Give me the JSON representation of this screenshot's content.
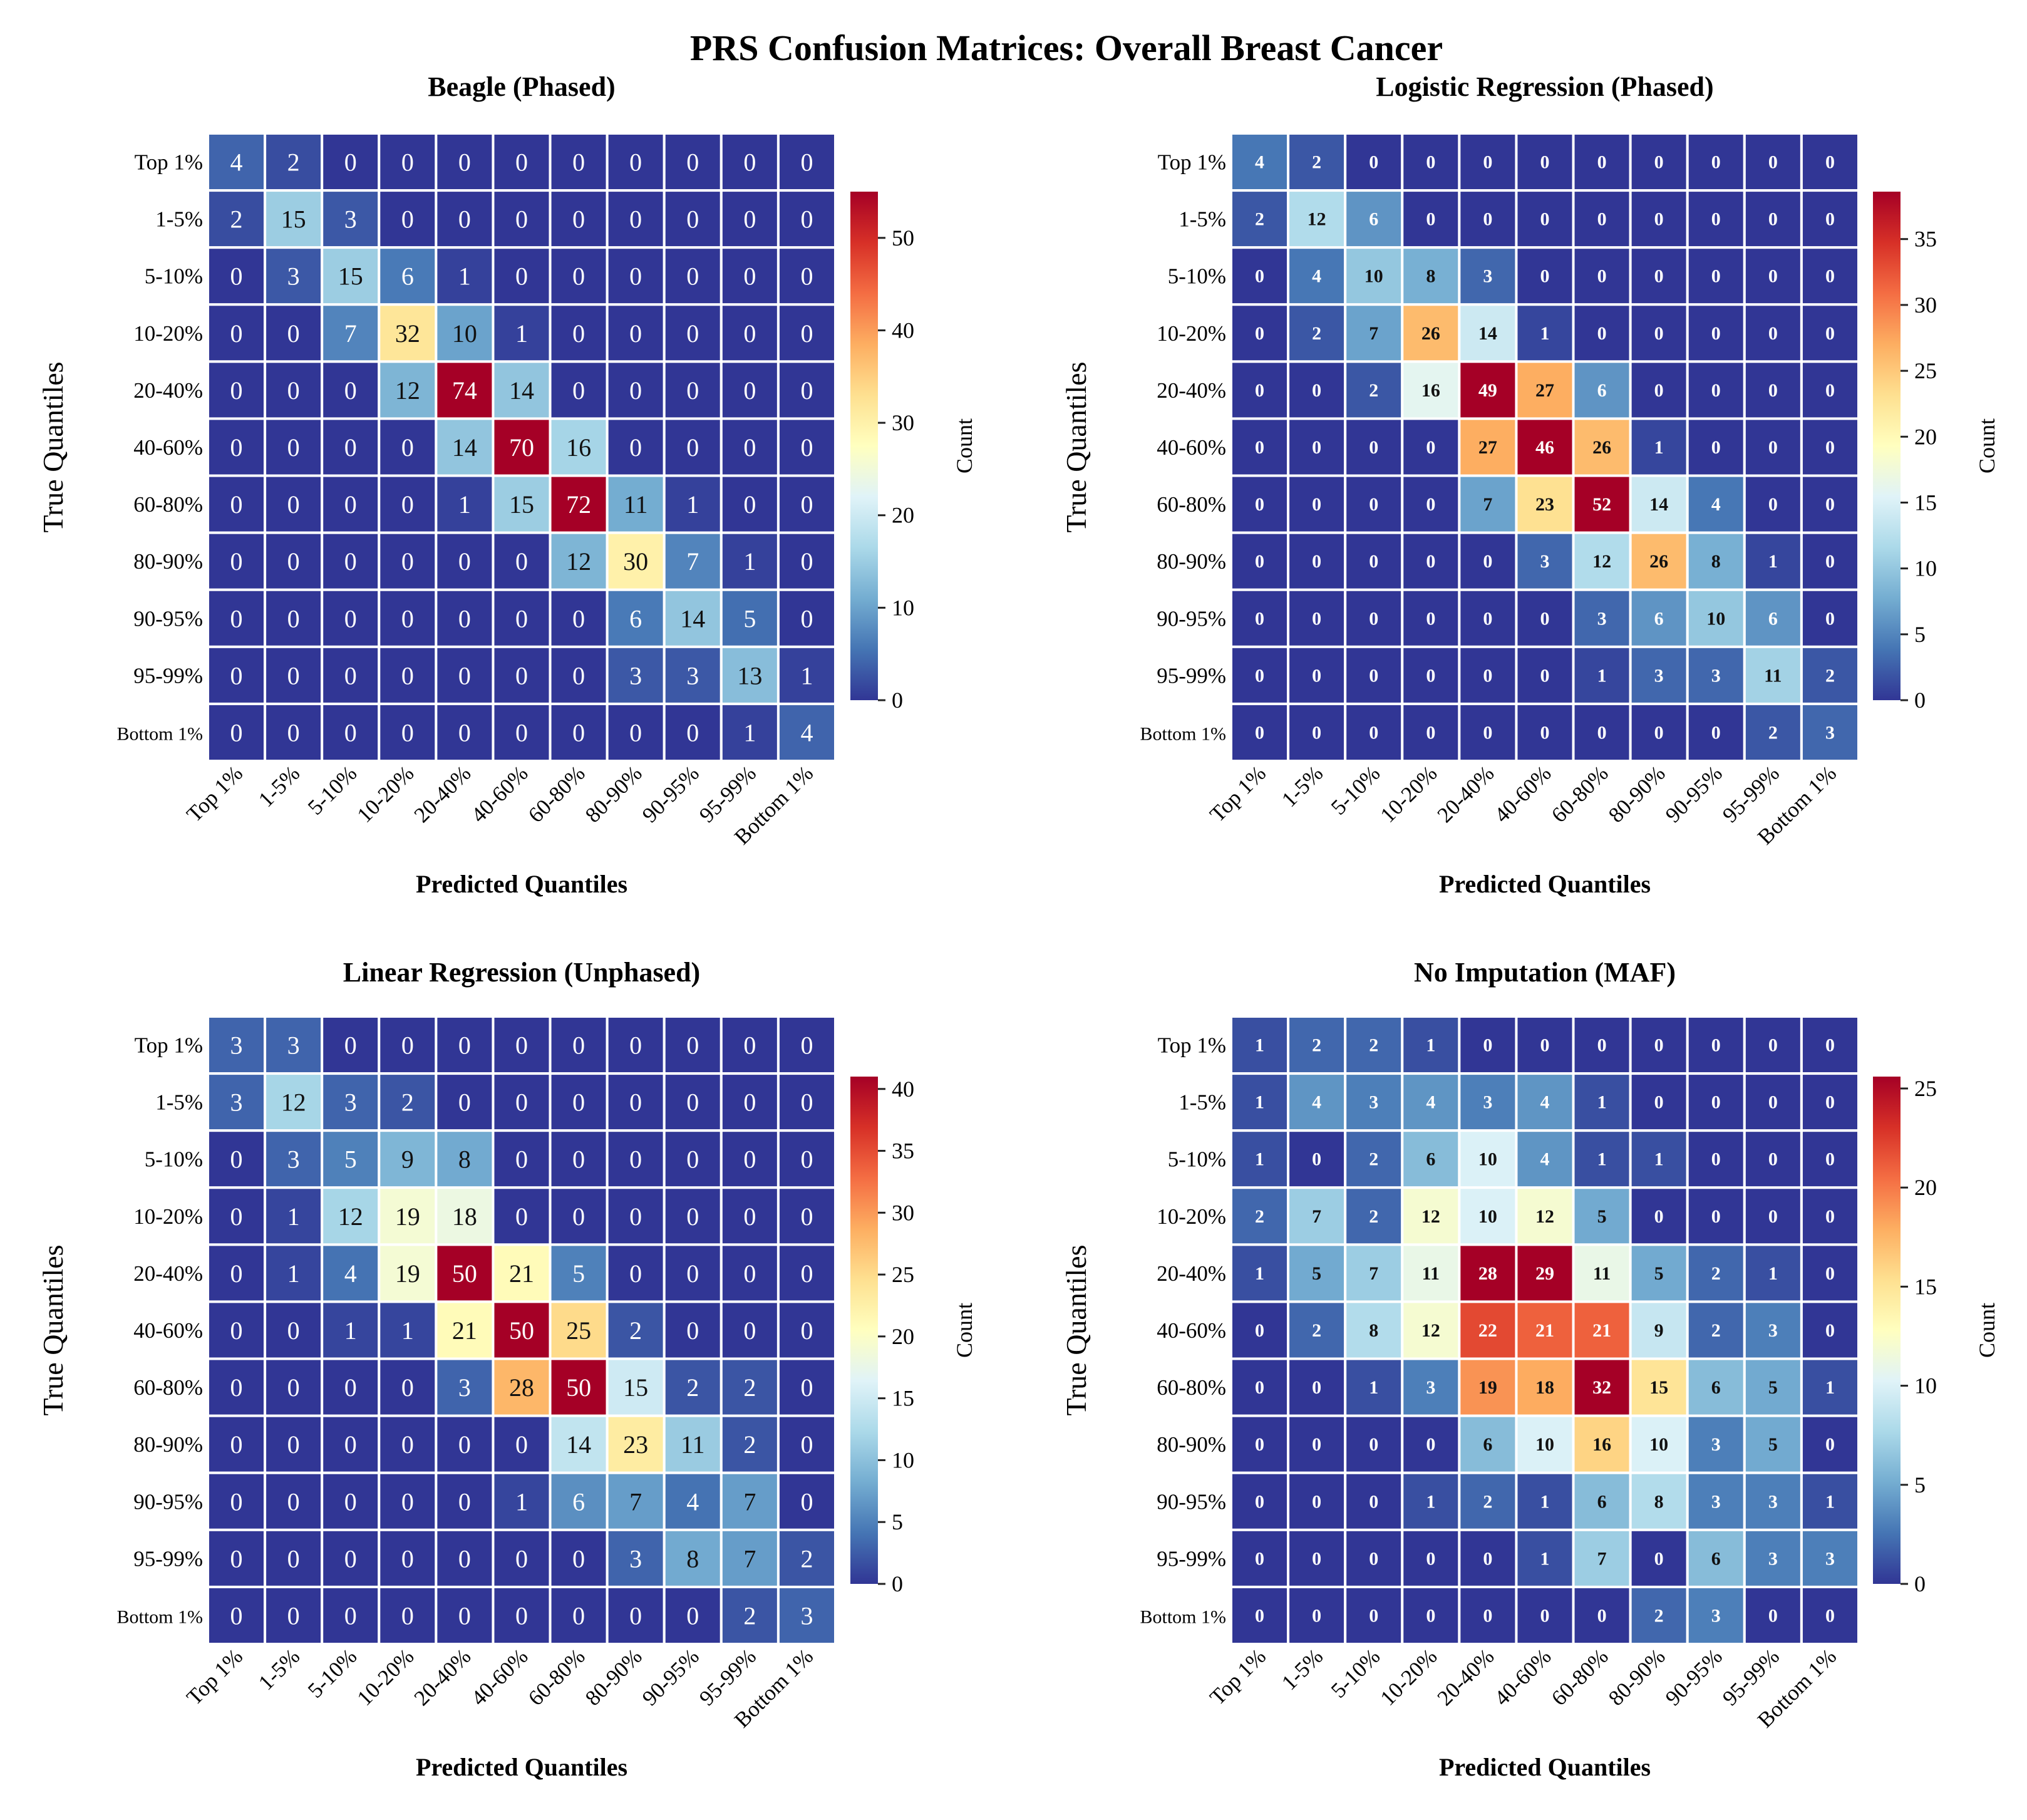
{
  "figure": {
    "title": "PRS Confusion Matrices: Overall Breast Cancer"
  },
  "colormap": {
    "name": "RdYlBu_r",
    "stops": [
      "#313695",
      "#4575b4",
      "#74add1",
      "#abd9e9",
      "#e0f3f8",
      "#ffffbf",
      "#fee090",
      "#fdae61",
      "#f46d43",
      "#d73027",
      "#a50026"
    ]
  },
  "chart_data": [
    {
      "type": "heatmap",
      "title": "Beagle (Phased)",
      "xlabel": "Predicted Quantiles",
      "ylabel": "True Quantiles",
      "colorbar_label": "Count",
      "colorbar_ticks": [
        0,
        10,
        20,
        30,
        40,
        50
      ],
      "vmin": 0,
      "vmax": 55,
      "annotation_style": "regular",
      "x_categories": [
        "Top 1%",
        "1-5%",
        "5-10%",
        "10-20%",
        "20-40%",
        "40-60%",
        "60-80%",
        "80-90%",
        "90-95%",
        "95-99%",
        "Bottom 1%"
      ],
      "y_categories": [
        "Top 1%",
        "1-5%",
        "5-10%",
        "10-20%",
        "20-40%",
        "40-60%",
        "60-80%",
        "80-90%",
        "90-95%",
        "95-99%",
        "Bottom 1%"
      ],
      "values": [
        [
          4,
          2,
          0,
          0,
          0,
          0,
          0,
          0,
          0,
          0,
          0
        ],
        [
          2,
          15,
          3,
          0,
          0,
          0,
          0,
          0,
          0,
          0,
          0
        ],
        [
          0,
          3,
          15,
          6,
          1,
          0,
          0,
          0,
          0,
          0,
          0
        ],
        [
          0,
          0,
          7,
          32,
          10,
          1,
          0,
          0,
          0,
          0,
          0
        ],
        [
          0,
          0,
          0,
          12,
          74,
          14,
          0,
          0,
          0,
          0,
          0
        ],
        [
          0,
          0,
          0,
          0,
          14,
          70,
          16,
          0,
          0,
          0,
          0
        ],
        [
          0,
          0,
          0,
          0,
          1,
          15,
          72,
          11,
          1,
          0,
          0
        ],
        [
          0,
          0,
          0,
          0,
          0,
          0,
          12,
          30,
          7,
          1,
          0
        ],
        [
          0,
          0,
          0,
          0,
          0,
          0,
          0,
          6,
          14,
          5,
          0
        ],
        [
          0,
          0,
          0,
          0,
          0,
          0,
          0,
          3,
          3,
          13,
          1
        ],
        [
          0,
          0,
          0,
          0,
          0,
          0,
          0,
          0,
          0,
          1,
          4
        ]
      ]
    },
    {
      "type": "heatmap",
      "title": "Logistic Regression (Phased)",
      "xlabel": "Predicted Quantiles",
      "ylabel": "True Quantiles",
      "colorbar_label": "Count",
      "colorbar_ticks": [
        0,
        5,
        10,
        15,
        20,
        25,
        30,
        35
      ],
      "vmin": 0,
      "vmax": 38.6,
      "annotation_style": "bold",
      "x_categories": [
        "Top 1%",
        "1-5%",
        "5-10%",
        "10-20%",
        "20-40%",
        "40-60%",
        "60-80%",
        "80-90%",
        "90-95%",
        "95-99%",
        "Bottom 1%"
      ],
      "y_categories": [
        "Top 1%",
        "1-5%",
        "5-10%",
        "10-20%",
        "20-40%",
        "40-60%",
        "60-80%",
        "80-90%",
        "90-95%",
        "95-99%",
        "Bottom 1%"
      ],
      "values": [
        [
          4,
          2,
          0,
          0,
          0,
          0,
          0,
          0,
          0,
          0,
          0
        ],
        [
          2,
          12,
          6,
          0,
          0,
          0,
          0,
          0,
          0,
          0,
          0
        ],
        [
          0,
          4,
          10,
          8,
          3,
          0,
          0,
          0,
          0,
          0,
          0
        ],
        [
          0,
          2,
          7,
          26,
          14,
          1,
          0,
          0,
          0,
          0,
          0
        ],
        [
          0,
          0,
          2,
          16,
          49,
          27,
          6,
          0,
          0,
          0,
          0
        ],
        [
          0,
          0,
          0,
          0,
          27,
          46,
          26,
          1,
          0,
          0,
          0
        ],
        [
          0,
          0,
          0,
          0,
          7,
          23,
          52,
          14,
          4,
          0,
          0
        ],
        [
          0,
          0,
          0,
          0,
          0,
          3,
          12,
          26,
          8,
          1,
          0
        ],
        [
          0,
          0,
          0,
          0,
          0,
          0,
          3,
          6,
          10,
          6,
          0
        ],
        [
          0,
          0,
          0,
          0,
          0,
          0,
          1,
          3,
          3,
          11,
          2
        ],
        [
          0,
          0,
          0,
          0,
          0,
          0,
          0,
          0,
          0,
          2,
          3
        ]
      ]
    },
    {
      "type": "heatmap",
      "title": "Linear Regression (Unphased)",
      "xlabel": "Predicted Quantiles",
      "ylabel": "True Quantiles",
      "colorbar_label": "Count",
      "colorbar_ticks": [
        0,
        5,
        10,
        15,
        20,
        25,
        30,
        35,
        40
      ],
      "vmin": 0,
      "vmax": 41,
      "annotation_style": "regular",
      "x_categories": [
        "Top 1%",
        "1-5%",
        "5-10%",
        "10-20%",
        "20-40%",
        "40-60%",
        "60-80%",
        "80-90%",
        "90-95%",
        "95-99%",
        "Bottom 1%"
      ],
      "y_categories": [
        "Top 1%",
        "1-5%",
        "5-10%",
        "10-20%",
        "20-40%",
        "40-60%",
        "60-80%",
        "80-90%",
        "90-95%",
        "95-99%",
        "Bottom 1%"
      ],
      "values": [
        [
          3,
          3,
          0,
          0,
          0,
          0,
          0,
          0,
          0,
          0,
          0
        ],
        [
          3,
          12,
          3,
          2,
          0,
          0,
          0,
          0,
          0,
          0,
          0
        ],
        [
          0,
          3,
          5,
          9,
          8,
          0,
          0,
          0,
          0,
          0,
          0
        ],
        [
          0,
          1,
          12,
          19,
          18,
          0,
          0,
          0,
          0,
          0,
          0
        ],
        [
          0,
          1,
          4,
          19,
          50,
          21,
          5,
          0,
          0,
          0,
          0
        ],
        [
          0,
          0,
          1,
          1,
          21,
          50,
          25,
          2,
          0,
          0,
          0
        ],
        [
          0,
          0,
          0,
          0,
          3,
          28,
          50,
          15,
          2,
          2,
          0
        ],
        [
          0,
          0,
          0,
          0,
          0,
          0,
          14,
          23,
          11,
          2,
          0
        ],
        [
          0,
          0,
          0,
          0,
          0,
          1,
          6,
          7,
          4,
          7,
          0
        ],
        [
          0,
          0,
          0,
          0,
          0,
          0,
          0,
          3,
          8,
          7,
          2
        ],
        [
          0,
          0,
          0,
          0,
          0,
          0,
          0,
          0,
          0,
          2,
          3
        ]
      ]
    },
    {
      "type": "heatmap",
      "title": "No Imputation (MAF)",
      "xlabel": "Predicted Quantiles",
      "ylabel": "True Quantiles",
      "colorbar_label": "Count",
      "colorbar_ticks": [
        0,
        5,
        10,
        15,
        20,
        25
      ],
      "vmin": 0,
      "vmax": 25.6,
      "annotation_style": "bold",
      "x_categories": [
        "Top 1%",
        "1-5%",
        "5-10%",
        "10-20%",
        "20-40%",
        "40-60%",
        "60-80%",
        "80-90%",
        "90-95%",
        "95-99%",
        "Bottom 1%"
      ],
      "y_categories": [
        "Top 1%",
        "1-5%",
        "5-10%",
        "10-20%",
        "20-40%",
        "40-60%",
        "60-80%",
        "80-90%",
        "90-95%",
        "95-99%",
        "Bottom 1%"
      ],
      "values": [
        [
          1,
          2,
          2,
          1,
          0,
          0,
          0,
          0,
          0,
          0,
          0
        ],
        [
          1,
          4,
          3,
          4,
          3,
          4,
          1,
          0,
          0,
          0,
          0
        ],
        [
          1,
          0,
          2,
          6,
          10,
          4,
          1,
          1,
          0,
          0,
          0
        ],
        [
          2,
          7,
          2,
          12,
          10,
          12,
          5,
          0,
          0,
          0,
          0
        ],
        [
          1,
          5,
          7,
          11,
          28,
          29,
          11,
          5,
          2,
          1,
          0
        ],
        [
          0,
          2,
          8,
          12,
          22,
          21,
          21,
          9,
          2,
          3,
          0
        ],
        [
          0,
          0,
          1,
          3,
          19,
          18,
          32,
          15,
          6,
          5,
          1
        ],
        [
          0,
          0,
          0,
          0,
          6,
          10,
          16,
          10,
          3,
          5,
          0
        ],
        [
          0,
          0,
          0,
          1,
          2,
          1,
          6,
          8,
          3,
          3,
          1
        ],
        [
          0,
          0,
          0,
          0,
          0,
          1,
          7,
          0,
          6,
          3,
          3
        ],
        [
          0,
          0,
          0,
          0,
          0,
          0,
          0,
          2,
          3,
          0,
          0
        ]
      ]
    }
  ]
}
